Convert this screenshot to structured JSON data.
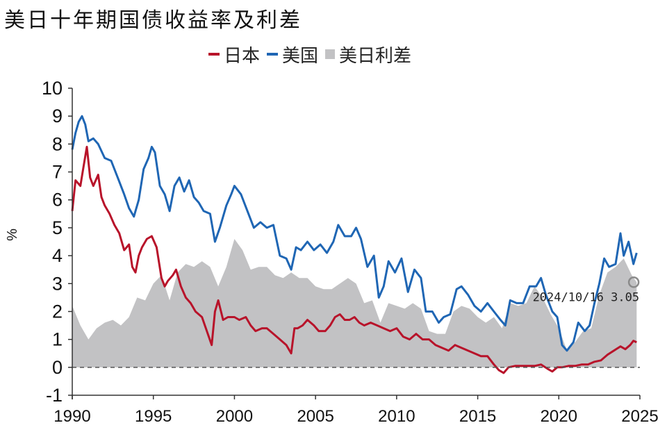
{
  "colors": {
    "japan": "#b8132a",
    "us": "#1f66b4",
    "spread": "#c2c2c4",
    "axis": "#333333",
    "zero": "#555555"
  },
  "chart_data": {
    "type": "line",
    "title": "美日十年期国债收益率及利差",
    "ylabel": "%",
    "xlabel": "",
    "ylim": [
      -1,
      10
    ],
    "xlim": [
      1990,
      2025
    ],
    "yticks": [
      "-1",
      "0",
      "1",
      "2",
      "3",
      "4",
      "5",
      "6",
      "7",
      "8",
      "9",
      "10"
    ],
    "xticks": [
      "1990",
      "1995",
      "2000",
      "2005",
      "2010",
      "2015",
      "2020",
      "2025"
    ],
    "legend": "top-center",
    "grid": false,
    "zero_line": "dashed",
    "series": [
      {
        "name": "日本",
        "kind": "line",
        "color": "#b8132a",
        "x": [
          1990.0,
          1990.2,
          1990.5,
          1990.7,
          1990.9,
          1991.1,
          1991.3,
          1991.6,
          1991.8,
          1992.0,
          1992.3,
          1992.6,
          1992.9,
          1993.2,
          1993.5,
          1993.7,
          1993.9,
          1994.1,
          1994.3,
          1994.6,
          1994.9,
          1995.2,
          1995.5,
          1995.7,
          1995.9,
          1996.2,
          1996.4,
          1996.7,
          1997.0,
          1997.3,
          1997.6,
          1998.0,
          1998.3,
          1998.6,
          1998.8,
          1999.0,
          1999.3,
          1999.6,
          2000.0,
          2000.3,
          2000.7,
          2001.0,
          2001.3,
          2001.7,
          2002.0,
          2002.4,
          2002.8,
          2003.2,
          2003.5,
          2003.7,
          2003.9,
          2004.2,
          2004.5,
          2004.9,
          2005.2,
          2005.6,
          2005.9,
          2006.2,
          2006.5,
          2006.8,
          2007.1,
          2007.4,
          2007.7,
          2008.0,
          2008.4,
          2008.8,
          2009.2,
          2009.6,
          2010.0,
          2010.4,
          2010.8,
          2011.2,
          2011.6,
          2012.0,
          2012.4,
          2012.8,
          2013.2,
          2013.6,
          2014.0,
          2014.4,
          2014.8,
          2015.2,
          2015.6,
          2016.0,
          2016.3,
          2016.6,
          2016.9,
          2017.3,
          2017.7,
          2018.1,
          2018.5,
          2018.9,
          2019.3,
          2019.6,
          2019.9,
          2020.2,
          2020.6,
          2021.0,
          2021.4,
          2021.8,
          2022.2,
          2022.6,
          2023.0,
          2023.4,
          2023.8,
          2024.1,
          2024.4,
          2024.6,
          2024.8
        ],
        "values": [
          5.6,
          6.7,
          6.5,
          7.2,
          7.9,
          6.8,
          6.5,
          6.9,
          6.1,
          5.8,
          5.5,
          5.1,
          4.8,
          4.2,
          4.4,
          3.6,
          3.4,
          4.0,
          4.3,
          4.6,
          4.7,
          4.3,
          3.2,
          2.9,
          3.1,
          3.3,
          3.5,
          2.9,
          2.5,
          2.3,
          2.0,
          1.8,
          1.3,
          0.8,
          2.0,
          2.4,
          1.7,
          1.8,
          1.8,
          1.7,
          1.8,
          1.5,
          1.3,
          1.4,
          1.4,
          1.2,
          1.0,
          0.8,
          0.5,
          1.4,
          1.4,
          1.5,
          1.7,
          1.5,
          1.3,
          1.3,
          1.5,
          1.8,
          1.9,
          1.7,
          1.7,
          1.8,
          1.6,
          1.5,
          1.6,
          1.5,
          1.4,
          1.3,
          1.4,
          1.1,
          1.0,
          1.2,
          1.0,
          1.0,
          0.8,
          0.7,
          0.6,
          0.8,
          0.7,
          0.6,
          0.5,
          0.4,
          0.4,
          0.1,
          -0.1,
          -0.2,
          0.0,
          0.05,
          0.05,
          0.05,
          0.05,
          0.1,
          -0.05,
          -0.15,
          0.0,
          0.0,
          0.05,
          0.05,
          0.1,
          0.1,
          0.2,
          0.25,
          0.45,
          0.6,
          0.75,
          0.65,
          0.8,
          0.95,
          0.9
        ]
      },
      {
        "name": "美国",
        "kind": "line",
        "color": "#1f66b4",
        "x": [
          1990.0,
          1990.2,
          1990.4,
          1990.6,
          1990.8,
          1991.0,
          1991.3,
          1991.6,
          1992.0,
          1992.4,
          1992.8,
          1993.2,
          1993.5,
          1993.8,
          1994.1,
          1994.4,
          1994.7,
          1994.9,
          1995.1,
          1995.4,
          1995.7,
          1996.0,
          1996.3,
          1996.6,
          1996.9,
          1997.2,
          1997.5,
          1997.8,
          1998.1,
          1998.5,
          1998.8,
          1999.1,
          1999.5,
          1999.8,
          2000.0,
          2000.4,
          2000.8,
          2001.2,
          2001.6,
          2002.0,
          2002.4,
          2002.8,
          2003.2,
          2003.5,
          2003.8,
          2004.1,
          2004.5,
          2004.9,
          2005.3,
          2005.7,
          2006.1,
          2006.4,
          2006.8,
          2007.2,
          2007.5,
          2007.8,
          2008.2,
          2008.6,
          2008.9,
          2009.2,
          2009.5,
          2009.9,
          2010.3,
          2010.7,
          2011.1,
          2011.5,
          2011.8,
          2012.2,
          2012.6,
          2012.9,
          2013.3,
          2013.7,
          2014.0,
          2014.4,
          2014.8,
          2015.2,
          2015.6,
          2016.0,
          2016.4,
          2016.7,
          2017.0,
          2017.4,
          2017.8,
          2018.2,
          2018.6,
          2018.9,
          2019.2,
          2019.6,
          2019.9,
          2020.2,
          2020.5,
          2020.9,
          2021.2,
          2021.6,
          2021.9,
          2022.2,
          2022.5,
          2022.8,
          2023.1,
          2023.5,
          2023.8,
          2024.0,
          2024.3,
          2024.6,
          2024.8
        ],
        "values": [
          7.8,
          8.4,
          8.8,
          9.0,
          8.7,
          8.1,
          8.2,
          8.0,
          7.5,
          7.4,
          6.8,
          6.2,
          5.7,
          5.4,
          6.0,
          7.1,
          7.5,
          7.9,
          7.7,
          6.5,
          6.2,
          5.6,
          6.5,
          6.8,
          6.3,
          6.7,
          6.1,
          5.9,
          5.6,
          5.5,
          4.5,
          5.0,
          5.8,
          6.2,
          6.5,
          6.2,
          5.6,
          5.0,
          5.2,
          5.0,
          5.1,
          4.0,
          3.9,
          3.5,
          4.3,
          4.2,
          4.5,
          4.2,
          4.4,
          4.1,
          4.5,
          5.1,
          4.7,
          4.7,
          5.0,
          4.6,
          3.6,
          4.0,
          2.5,
          2.9,
          3.8,
          3.4,
          3.9,
          2.7,
          3.5,
          3.2,
          2.0,
          2.0,
          1.6,
          1.8,
          1.9,
          2.8,
          2.9,
          2.6,
          2.2,
          2.0,
          2.3,
          2.0,
          1.7,
          1.5,
          2.4,
          2.3,
          2.3,
          2.9,
          2.9,
          3.2,
          2.6,
          2.0,
          1.8,
          0.8,
          0.6,
          0.9,
          1.6,
          1.3,
          1.5,
          2.3,
          3.0,
          3.9,
          3.6,
          3.7,
          4.8,
          4.0,
          4.5,
          3.7,
          4.1
        ]
      },
      {
        "name": "美日利差",
        "kind": "area",
        "color": "#c2c2c4",
        "x": [
          1990.0,
          1990.5,
          1991.0,
          1991.5,
          1992.0,
          1992.5,
          1993.0,
          1993.5,
          1994.0,
          1994.5,
          1995.0,
          1995.5,
          1996.0,
          1996.5,
          1997.0,
          1997.5,
          1998.0,
          1998.5,
          1999.0,
          1999.5,
          2000.0,
          2000.5,
          2001.0,
          2001.5,
          2002.0,
          2002.5,
          2003.0,
          2003.5,
          2004.0,
          2004.5,
          2005.0,
          2005.5,
          2006.0,
          2006.5,
          2007.0,
          2007.5,
          2008.0,
          2008.5,
          2009.0,
          2009.5,
          2010.0,
          2010.5,
          2011.0,
          2011.5,
          2012.0,
          2012.5,
          2013.0,
          2013.5,
          2014.0,
          2014.5,
          2015.0,
          2015.5,
          2016.0,
          2016.5,
          2017.0,
          2017.5,
          2018.0,
          2018.5,
          2019.0,
          2019.5,
          2020.0,
          2020.5,
          2021.0,
          2021.5,
          2022.0,
          2022.5,
          2023.0,
          2023.5,
          2024.0,
          2024.5,
          2024.8
        ],
        "values": [
          2.2,
          1.5,
          1.0,
          1.4,
          1.6,
          1.7,
          1.5,
          1.8,
          2.5,
          2.4,
          3.0,
          3.3,
          2.4,
          3.4,
          3.7,
          3.6,
          3.8,
          3.6,
          2.9,
          3.6,
          4.6,
          4.2,
          3.5,
          3.6,
          3.6,
          3.3,
          3.2,
          3.4,
          3.2,
          3.2,
          2.9,
          2.8,
          2.8,
          3.0,
          3.2,
          3.0,
          2.3,
          2.4,
          1.6,
          2.3,
          2.2,
          2.1,
          2.3,
          2.1,
          1.3,
          1.2,
          1.2,
          2.0,
          2.2,
          2.1,
          1.8,
          1.6,
          1.8,
          1.4,
          2.3,
          2.2,
          2.3,
          2.9,
          2.5,
          1.9,
          1.4,
          0.6,
          0.9,
          1.3,
          1.4,
          2.6,
          3.4,
          3.6,
          3.9,
          3.3,
          3.05
        ]
      }
    ],
    "annotation": {
      "label": "2024/10/16  3.05",
      "x": 2024.79,
      "y": 3.05
    }
  }
}
